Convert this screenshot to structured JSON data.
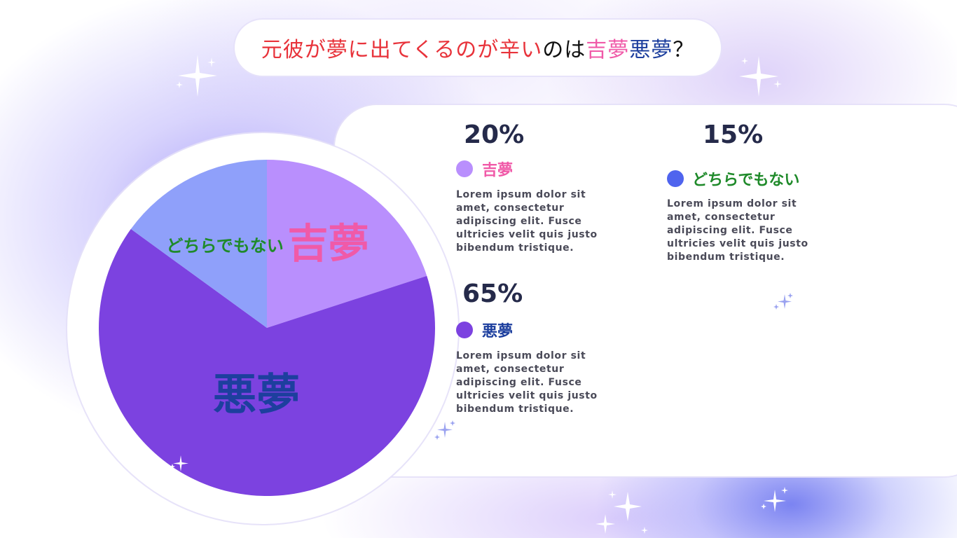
{
  "title": {
    "part1": "元彼が夢に出てくるのが辛い",
    "part2": "のは",
    "part3": "吉夢",
    "part4": "悪夢",
    "part5": "？"
  },
  "colors": {
    "good_dream": "#b98ffd",
    "nightmare": "#7c42e0",
    "neither": "#8fa0fa",
    "neither_dot": "#4f64ee",
    "good_label": "#f05aa8",
    "nightmare_label": "#1d3f9e",
    "neither_label": "#1f8a2a"
  },
  "legend": [
    {
      "id": "good",
      "percent": "20%",
      "label": "吉夢",
      "description": "Lorem ipsum dolor sit amet, consectetur adipiscing elit. Fusce ultricies velit quis justo bibendum tristique."
    },
    {
      "id": "nightmare",
      "percent": "65%",
      "label": "悪夢",
      "description": "Lorem ipsum dolor sit amet, consectetur adipiscing elit. Fusce ultricies velit quis justo bibendum tristique."
    },
    {
      "id": "neither",
      "percent": "15%",
      "label": "どちらでもない",
      "description": "Lorem ipsum dolor sit amet, consectetur adipiscing elit. Fusce ultricies velit quis justo bibendum tristique."
    }
  ],
  "chart_data": {
    "type": "pie",
    "title": "元彼が夢に出てくるのが辛いのは吉夢悪夢？",
    "labels": [
      "吉夢",
      "悪夢",
      "どちらでもない"
    ],
    "values": [
      20,
      65,
      15
    ],
    "unit": "%",
    "colors": [
      "#b98ffd",
      "#7c42e0",
      "#8fa0fa"
    ],
    "slice_label_colors": [
      "#f05aa8",
      "#1d3f9e",
      "#1f8a2a"
    ],
    "start": "12 o'clock, clockwise",
    "legend_position": "right"
  }
}
